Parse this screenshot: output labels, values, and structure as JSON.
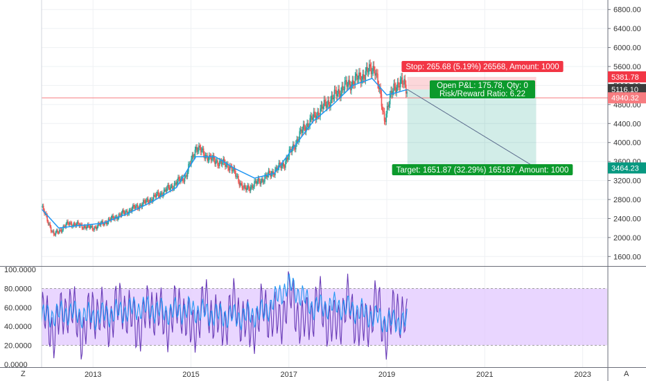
{
  "corner_labels": {
    "left": "Z",
    "right": "A"
  },
  "x_axis": {
    "ticks": [
      "2013",
      "2015",
      "2017",
      "2019",
      "2021",
      "2023"
    ],
    "tick_years": [
      2013,
      2015,
      2017,
      2019,
      2021,
      2023
    ],
    "range": [
      2011.95,
      2023.5
    ]
  },
  "price_panel": {
    "ticks": [
      "1600.00",
      "2000.00",
      "2400.00",
      "2800.00",
      "3200.00",
      "3600.00",
      "4000.00",
      "4400.00",
      "4800.00",
      "5200.00",
      "5600.00",
      "6000.00",
      "6400.00",
      "6800.00"
    ],
    "tick_values": [
      1600,
      2000,
      2400,
      2800,
      3200,
      3600,
      4000,
      4400,
      4800,
      5200,
      5600,
      6000,
      6400,
      6800
    ],
    "range": [
      1400,
      7000
    ],
    "price_tags": [
      {
        "label": "5381.78",
        "value": 5381.78,
        "color": "#f23645"
      },
      {
        "label": "5116.10",
        "value": 5116.1,
        "color": "#3c3c3c"
      },
      {
        "label": "4940.32",
        "value": 4940.32,
        "color": "#f77c80"
      },
      {
        "label": "3464.23",
        "value": 3464.23,
        "color": "#089981"
      }
    ],
    "entry_level": 4940.32
  },
  "position": {
    "type": "short",
    "stop_label": "Stop: 265.68 (5.19%) 26568, Amount: 1000",
    "pnl_label": "Open P&L: 175.78, Qty: 0",
    "rr_label": "Risk/Reward Ratio: 6.22",
    "target_label": "Target: 1651.87 (32.29%) 165187, Amount: 1000",
    "entry": 5116.1,
    "stop": 5381.78,
    "target": 3464.23,
    "start": 2019.42,
    "end": 2022.05,
    "stop_color": "#f23645",
    "target_color": "#089981"
  },
  "oscillator_panel": {
    "ticks": [
      "0.0000",
      "20.0000",
      "40.0000",
      "60.0000",
      "80.0000",
      "100.0000"
    ],
    "tick_values": [
      0,
      20,
      40,
      60,
      80,
      100
    ],
    "range": [
      -3,
      103
    ],
    "band": [
      20,
      80
    ],
    "band_color": "#e1c8ff"
  },
  "colors": {
    "up": "#26a69a",
    "down": "#ef5350",
    "ma": "#2196f3",
    "osc_k": "#6739b6",
    "osc_d": "#2196f3",
    "grid": "#eef0f3"
  },
  "chart_data": [
    {
      "type": "candlestick",
      "series": [
        {
          "name": "price",
          "note": "approximate weekly close path",
          "x": [
            2011.95,
            2012.2,
            2012.5,
            2013.0,
            2013.5,
            2014.0,
            2014.5,
            2014.9,
            2015.1,
            2015.4,
            2015.8,
            2016.1,
            2016.5,
            2016.9,
            2017.3,
            2017.7,
            2018.1,
            2018.5,
            2018.75,
            2018.95,
            2019.15,
            2019.35,
            2019.42
          ],
          "y": [
            2650,
            2050,
            2300,
            2200,
            2450,
            2700,
            3000,
            3300,
            3900,
            3650,
            3500,
            3000,
            3250,
            3550,
            4300,
            4750,
            5150,
            5400,
            5600,
            4500,
            5200,
            5250,
            5116
          ]
        },
        {
          "name": "moving average",
          "x": [
            2011.95,
            2012.3,
            2012.7,
            2013.2,
            2013.7,
            2014.2,
            2014.7,
            2015.1,
            2015.5,
            2015.9,
            2016.3,
            2016.7,
            2017.1,
            2017.5,
            2017.9,
            2018.3,
            2018.7,
            2019.0,
            2019.2,
            2019.42
          ],
          "y": [
            2600,
            2200,
            2250,
            2300,
            2500,
            2750,
            3050,
            3700,
            3700,
            3450,
            3250,
            3350,
            3900,
            4450,
            4800,
            5200,
            5350,
            5000,
            5050,
            5116
          ]
        }
      ]
    },
    {
      "type": "line",
      "ylim": [
        0,
        100
      ],
      "band": [
        20,
        80
      ],
      "series": [
        {
          "name": "%K",
          "x": [
            2011.95,
            2012.2,
            2012.5,
            2012.8,
            2013.0,
            2013.3,
            2013.6,
            2013.9,
            2014.2,
            2014.5,
            2014.8,
            2015.0,
            2015.3,
            2015.6,
            2015.9,
            2016.2,
            2016.5,
            2016.8,
            2017.0,
            2017.3,
            2017.6,
            2017.9,
            2018.2,
            2018.5,
            2018.8,
            2019.0,
            2019.2,
            2019.42
          ],
          "y": [
            55,
            20,
            78,
            12,
            70,
            40,
            80,
            25,
            75,
            35,
            78,
            15,
            80,
            30,
            75,
            20,
            70,
            35,
            98,
            30,
            82,
            25,
            78,
            20,
            80,
            8,
            78,
            25
          ]
        },
        {
          "name": "%D",
          "x": [
            2011.95,
            2012.5,
            2013.0,
            2013.5,
            2014.0,
            2014.5,
            2015.0,
            2015.5,
            2016.0,
            2016.5,
            2017.0,
            2017.5,
            2018.0,
            2018.5,
            2019.0,
            2019.42
          ],
          "y": [
            50,
            55,
            50,
            55,
            60,
            55,
            58,
            52,
            50,
            55,
            85,
            60,
            62,
            55,
            45,
            45
          ]
        }
      ]
    }
  ]
}
